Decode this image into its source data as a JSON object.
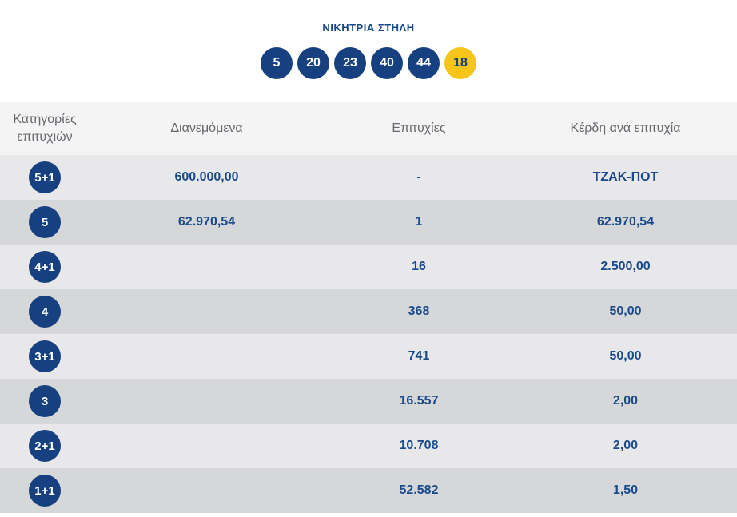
{
  "header": {
    "title": "ΝΙΚΗΤΡΙΑ ΣΤΗΛΗ",
    "numbers": [
      "5",
      "20",
      "23",
      "40",
      "44"
    ],
    "joker": "18"
  },
  "table": {
    "columns": {
      "category_line1": "Κατηγορίες",
      "category_line2": "επιτυχιών",
      "distributed": "Διανεμόμενα",
      "winners": "Επιτυχίες",
      "prize": "Κέρδη ανά επιτυχία"
    },
    "rows": [
      {
        "category": "5+1",
        "distributed": "600.000,00",
        "winners": "-",
        "prize": "ΤΖΑΚ-ΠΟΤ"
      },
      {
        "category": "5",
        "distributed": "62.970,54",
        "winners": "1",
        "prize": "62.970,54"
      },
      {
        "category": "4+1",
        "distributed": "",
        "winners": "16",
        "prize": "2.500,00"
      },
      {
        "category": "4",
        "distributed": "",
        "winners": "368",
        "prize": "50,00"
      },
      {
        "category": "3+1",
        "distributed": "",
        "winners": "741",
        "prize": "50,00"
      },
      {
        "category": "3",
        "distributed": "",
        "winners": "16.557",
        "prize": "2,00"
      },
      {
        "category": "2+1",
        "distributed": "",
        "winners": "10.708",
        "prize": "2,00"
      },
      {
        "category": "1+1",
        "distributed": "",
        "winners": "52.582",
        "prize": "1,50"
      }
    ]
  },
  "colors": {
    "ball_blue": "#16407f",
    "joker_yellow": "#f7c41a",
    "text_blue": "#1a4a8a"
  }
}
